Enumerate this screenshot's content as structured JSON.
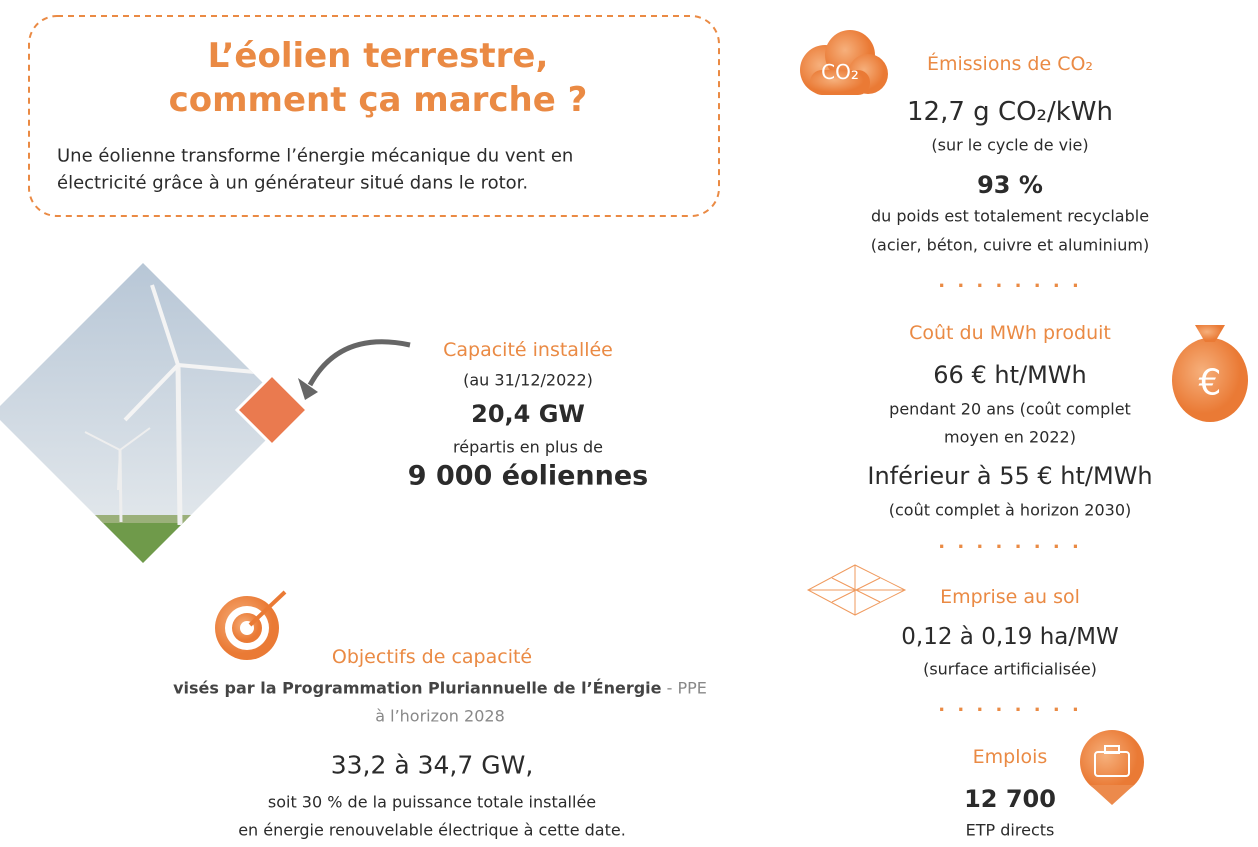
{
  "header": {
    "title_lines": [
      "L’éolien terrestre,",
      "comment ça marche ?"
    ],
    "description_lines": [
      "Une éolienne transforme l’énergie mécanique du vent en",
      "électricité grâce à un générateur situé dans le rotor."
    ]
  },
  "capacity": {
    "heading": "Capacité installée",
    "date": "(au 31/12/2022)",
    "value": "20,4 GW",
    "detail": "répartis en plus de",
    "count": "9 000 éoliennes"
  },
  "objectives": {
    "heading": "Objectifs de capacité",
    "line": "visés par la Programmation Pluriannuelle de l’Énergie",
    "ppe": " - PPE",
    "horizon": "à l’horizon 2028",
    "value": "33,2 à 34,7 GW,",
    "note_lines": [
      "soit 30 % de la puissance totale installée",
      "en énergie renouvelable électrique à cette date."
    ]
  },
  "emissions": {
    "icon": "CO₂",
    "heading": "Émissions de CO₂",
    "value": "12,7 g CO₂/kWh",
    "note": "(sur le cycle de vie)",
    "recycle_value": "93 %",
    "recycle_lines": [
      "du poids est totalement recyclable",
      "(acier, béton, cuivre et aluminium)"
    ]
  },
  "cost": {
    "icon": "€",
    "heading": "Coût du MWh produit",
    "value": "66 € ht/MWh",
    "note_lines": [
      "pendant 20 ans (coût complet",
      "moyen en 2022)"
    ],
    "future": "Inférieur à 55 € ht/MWh",
    "future_note": "(coût complet à horizon 2030)"
  },
  "land": {
    "heading": "Emprise au sol",
    "value": "0,12 à 0,19 ha/MW",
    "note": "(surface artificialisée)"
  },
  "jobs": {
    "heading": "Emplois",
    "value": "12 700",
    "note": "ETP directs"
  }
}
